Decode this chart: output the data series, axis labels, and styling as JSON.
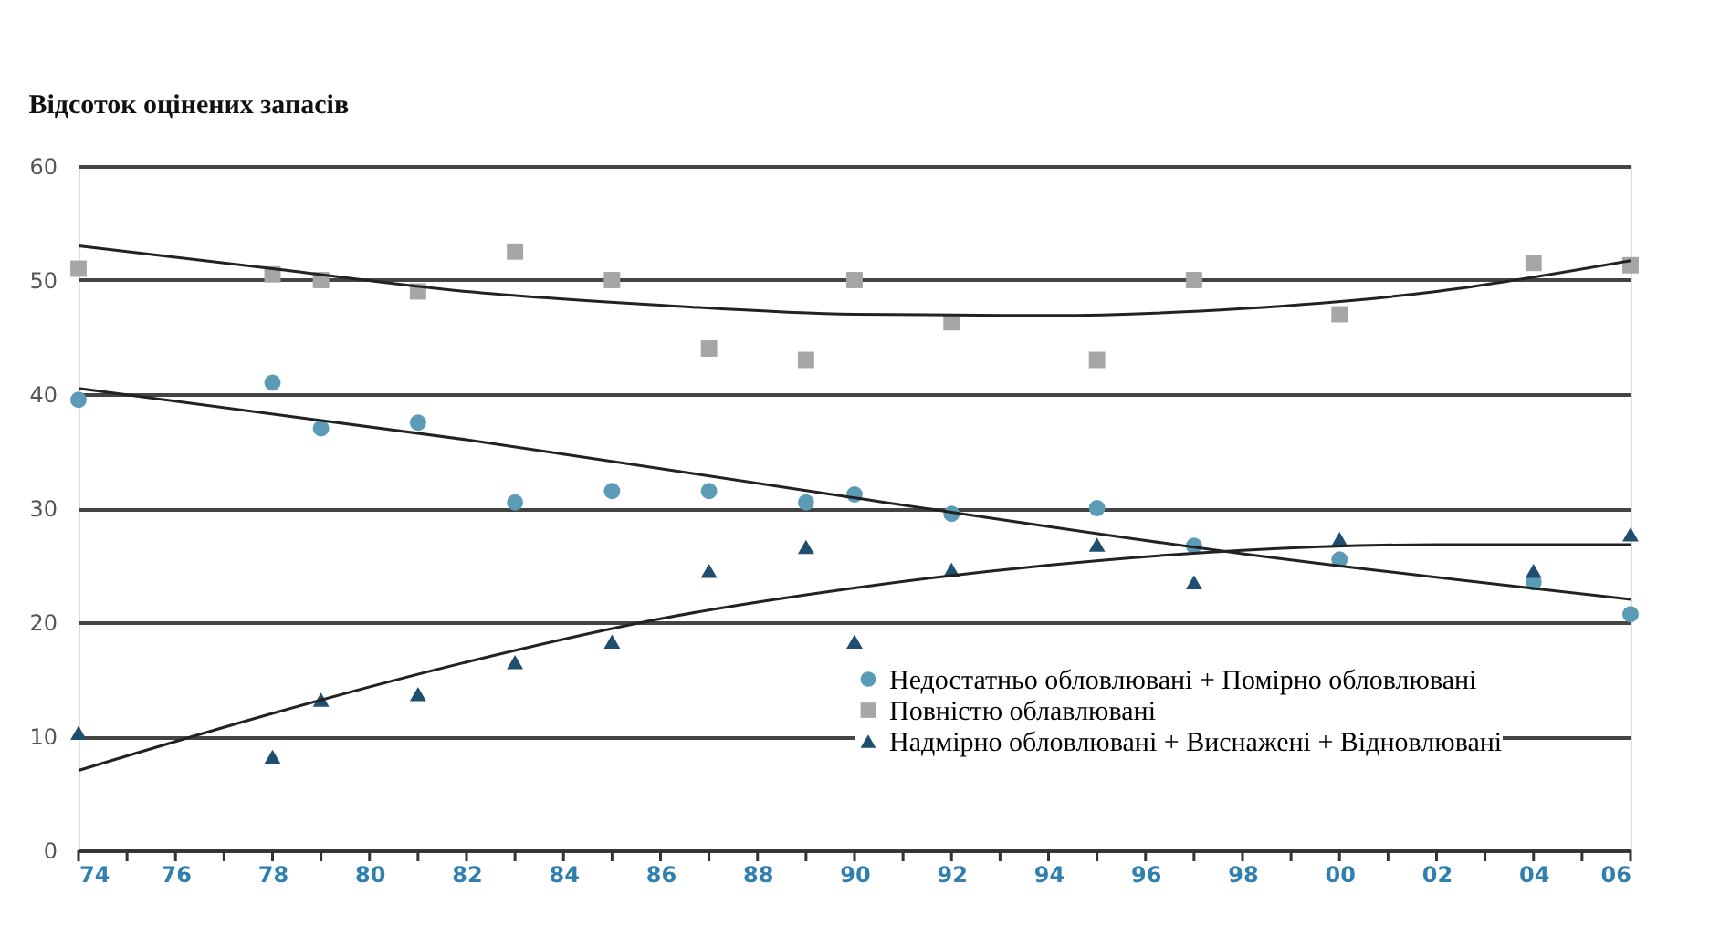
{
  "chart_data": {
    "type": "scatter",
    "title": "Відсоток оцінених запасів",
    "x": [
      1974,
      1978,
      1979,
      1981,
      1983,
      1985,
      1987,
      1989,
      1990,
      1992,
      1995,
      1997,
      2000,
      2004,
      2006
    ],
    "series": [
      {
        "name": "Недостатньо обловлювані + Помірно обловлювані",
        "color": "#5b9bb5",
        "marker": "circle",
        "values": [
          39.5,
          41,
          37,
          37.5,
          30.5,
          31.5,
          31.5,
          30.5,
          31.2,
          29.5,
          30,
          26.7,
          25.5,
          23.5,
          20.7
        ]
      },
      {
        "name": "Повністю облавлювані",
        "color": "#a6a6a6",
        "marker": "square",
        "values": [
          51,
          50.5,
          50,
          49,
          52.5,
          50,
          44,
          43,
          50,
          46.3,
          43,
          50,
          47,
          51.5,
          51.3
        ]
      },
      {
        "name": "Надмірно обловлювані + Виснажені + Відновлювані",
        "color": "#1f4e6e",
        "marker": "triangle",
        "values": [
          10.3,
          8.2,
          13.2,
          13.7,
          16.5,
          18.3,
          24.5,
          26.6,
          18.3,
          24.6,
          26.8,
          23.5,
          27.3,
          24.5,
          27.7
        ]
      },
      {
        "type": "line",
        "color": "#222222",
        "x": [
          1974,
          1978,
          1982,
          1986,
          1990,
          1994,
          1998,
          2002,
          2006
        ],
        "values": [
          53,
          51,
          49,
          47.8,
          47,
          46.9,
          47.5,
          49,
          51.7
        ]
      },
      {
        "type": "line",
        "color": "#222222",
        "x": [
          1974,
          1982,
          1990,
          1998,
          2006
        ],
        "values": [
          40.5,
          36,
          30.9,
          26,
          22
        ]
      },
      {
        "type": "line",
        "color": "#222222",
        "x": [
          1974,
          1978,
          1982,
          1986,
          1990,
          1994,
          1998,
          2002,
          2006
        ],
        "values": [
          7,
          12,
          16.5,
          20.3,
          23,
          25,
          26.3,
          26.8,
          26.8
        ]
      }
    ],
    "xlim": [
      1974,
      2006
    ],
    "xticks": [
      {
        "value": 1974,
        "label": "74"
      },
      {
        "value": 1975,
        "label": null
      },
      {
        "value": 1976,
        "label": "76"
      },
      {
        "value": 1977,
        "label": null
      },
      {
        "value": 1978,
        "label": "78"
      },
      {
        "value": 1979,
        "label": null
      },
      {
        "value": 1980,
        "label": "80"
      },
      {
        "value": 1981,
        "label": null
      },
      {
        "value": 1982,
        "label": "82"
      },
      {
        "value": 1983,
        "label": null
      },
      {
        "value": 1984,
        "label": "84"
      },
      {
        "value": 1985,
        "label": null
      },
      {
        "value": 1986,
        "label": "86"
      },
      {
        "value": 1987,
        "label": null
      },
      {
        "value": 1988,
        "label": "88"
      },
      {
        "value": 1989,
        "label": null
      },
      {
        "value": 1990,
        "label": "90"
      },
      {
        "value": 1991,
        "label": null
      },
      {
        "value": 1992,
        "label": "92"
      },
      {
        "value": 1993,
        "label": null
      },
      {
        "value": 1994,
        "label": "94"
      },
      {
        "value": 1995,
        "label": null
      },
      {
        "value": 1996,
        "label": "96"
      },
      {
        "value": 1997,
        "label": null
      },
      {
        "value": 1998,
        "label": "98"
      },
      {
        "value": 1999,
        "label": null
      },
      {
        "value": 2000,
        "label": "00"
      },
      {
        "value": 2001,
        "label": null
      },
      {
        "value": 2002,
        "label": "02"
      },
      {
        "value": 2003,
        "label": null
      },
      {
        "value": 2004,
        "label": "04"
      },
      {
        "value": 2005,
        "label": null
      },
      {
        "value": 2006,
        "label": "06"
      }
    ],
    "ylim": [
      0,
      60
    ],
    "yticks": [
      0,
      10,
      20,
      30,
      40,
      50,
      60
    ],
    "grid": "y",
    "legend": "bottom right"
  }
}
